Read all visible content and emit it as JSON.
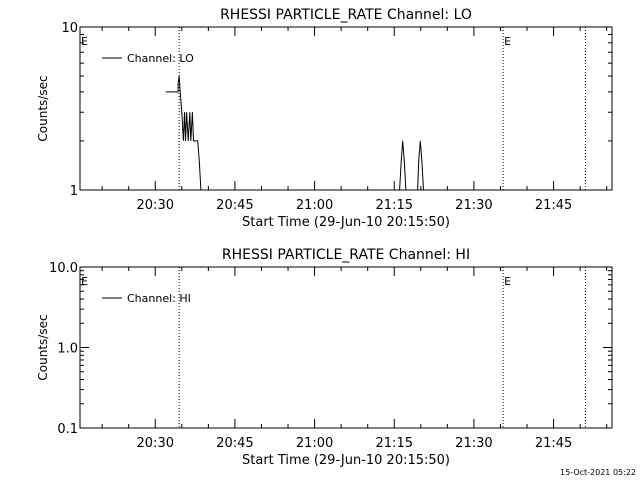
{
  "footer": "15-Oct-2021 05:22",
  "chart_data": [
    {
      "type": "line",
      "title": "RHESSI PARTICLE_RATE Channel: LO",
      "xlabel": "Start Time (29-Jun-10 20:15:50)",
      "ylabel": "Counts/sec",
      "y_scale": "log",
      "ylim": [
        1,
        10
      ],
      "y_ticks": [
        "1",
        "10"
      ],
      "x_ticks": [
        "20:30",
        "20:45",
        "21:00",
        "21:15",
        "21:30",
        "21:45"
      ],
      "x_tick_minutes": [
        30,
        45,
        60,
        75,
        90,
        105
      ],
      "xlim_minutes": [
        15.83,
        116.0
      ],
      "legend": "Channel: LO",
      "event_markers": [
        {
          "label": "E",
          "minute": 15.83
        },
        {
          "label": "",
          "minute": 34.5
        },
        {
          "label": "E",
          "minute": 95.5
        },
        {
          "label": "",
          "minute": 111.0
        }
      ],
      "series": [
        {
          "name": "Channel: LO",
          "x": [
            32.0,
            34.3,
            34.3,
            34.5,
            34.7,
            35.0,
            35.3,
            35.5,
            35.7,
            35.9,
            36.2,
            36.5,
            36.7,
            37.0,
            37.2,
            37.4,
            37.6,
            38.0,
            38.3,
            38.6,
            38.6,
            76.0,
            76.3,
            76.6,
            76.9,
            77.2,
            79.4,
            79.6,
            79.9,
            80.2,
            80.5
          ],
          "y": [
            4.0,
            4.0,
            4.5,
            5.0,
            4.0,
            3.0,
            2.0,
            3.0,
            2.0,
            3.0,
            2.0,
            3.0,
            2.0,
            3.0,
            2.0,
            2.0,
            2.0,
            2.0,
            1.5,
            1.0,
            1.0,
            1.0,
            1.5,
            2.0,
            1.5,
            1.0,
            1.0,
            1.5,
            2.0,
            1.5,
            1.0
          ]
        }
      ]
    },
    {
      "type": "line",
      "title": "RHESSI PARTICLE_RATE Channel: HI",
      "xlabel": "Start Time (29-Jun-10 20:15:50)",
      "ylabel": "Counts/sec",
      "y_scale": "log",
      "ylim": [
        0.1,
        10
      ],
      "y_ticks": [
        "0.1",
        "1.0",
        "10.0"
      ],
      "x_ticks": [
        "20:30",
        "20:45",
        "21:00",
        "21:15",
        "21:30",
        "21:45"
      ],
      "x_tick_minutes": [
        30,
        45,
        60,
        75,
        90,
        105
      ],
      "xlim_minutes": [
        15.83,
        116.0
      ],
      "legend": "Channel: HI",
      "event_markers": [
        {
          "label": "E",
          "minute": 15.83
        },
        {
          "label": "",
          "minute": 34.5
        },
        {
          "label": "E",
          "minute": 95.5
        },
        {
          "label": "",
          "minute": 111.0
        }
      ],
      "series": [
        {
          "name": "Channel: HI",
          "x": [],
          "y": []
        }
      ]
    }
  ]
}
